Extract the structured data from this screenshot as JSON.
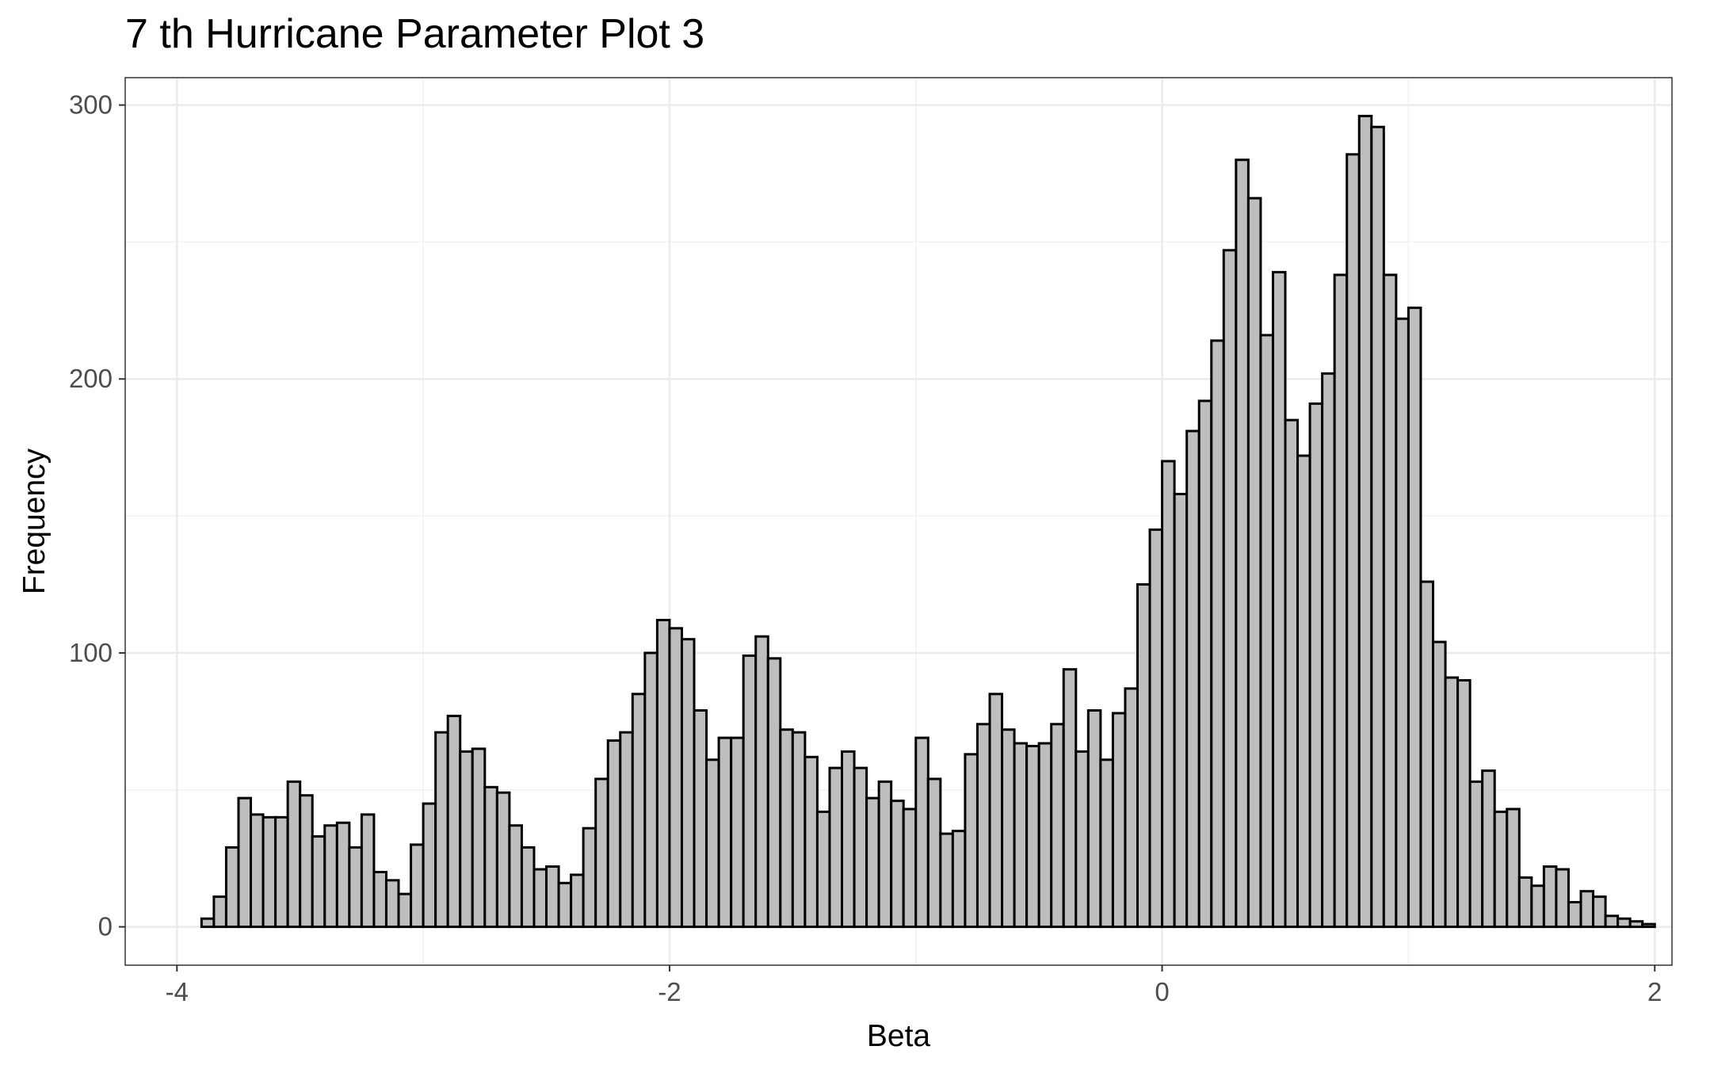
{
  "chart_data": {
    "type": "bar",
    "title": "7 th Hurricane Parameter Plot 3",
    "xlabel": "Beta",
    "ylabel": "Frequency",
    "xlim": [
      -4.21,
      2.07
    ],
    "ylim": [
      -14,
      310
    ],
    "x_ticks": [
      -4,
      -2,
      0,
      2
    ],
    "x_tick_labels": [
      "-4",
      "-2",
      "0",
      "2"
    ],
    "y_ticks": [
      0,
      100,
      200,
      300
    ],
    "y_tick_labels": [
      "0",
      "100",
      "200",
      "300"
    ],
    "grid": true,
    "bin_start": -3.9,
    "bin_width": 0.05,
    "bar_fill": "#bebebe",
    "bar_stroke": "#000000",
    "values": [
      3,
      11,
      29,
      47,
      41,
      40,
      40,
      53,
      48,
      33,
      37,
      38,
      29,
      41,
      20,
      17,
      12,
      30,
      45,
      71,
      77,
      64,
      65,
      51,
      49,
      37,
      29,
      21,
      22,
      16,
      19,
      36,
      54,
      68,
      71,
      85,
      100,
      112,
      109,
      105,
      79,
      61,
      69,
      69,
      99,
      106,
      98,
      72,
      71,
      62,
      42,
      58,
      64,
      58,
      47,
      53,
      46,
      43,
      69,
      54,
      34,
      35,
      63,
      74,
      85,
      72,
      67,
      66,
      67,
      74,
      94,
      64,
      79,
      61,
      78,
      87,
      125,
      145,
      170,
      158,
      181,
      192,
      214,
      247,
      280,
      266,
      216,
      239,
      185,
      172,
      191,
      202,
      238,
      282,
      296,
      292,
      238,
      222,
      226,
      126,
      104,
      91,
      90,
      53,
      57,
      42,
      43,
      18,
      15,
      22,
      21,
      9,
      13,
      11,
      4,
      3,
      2,
      1
    ]
  }
}
